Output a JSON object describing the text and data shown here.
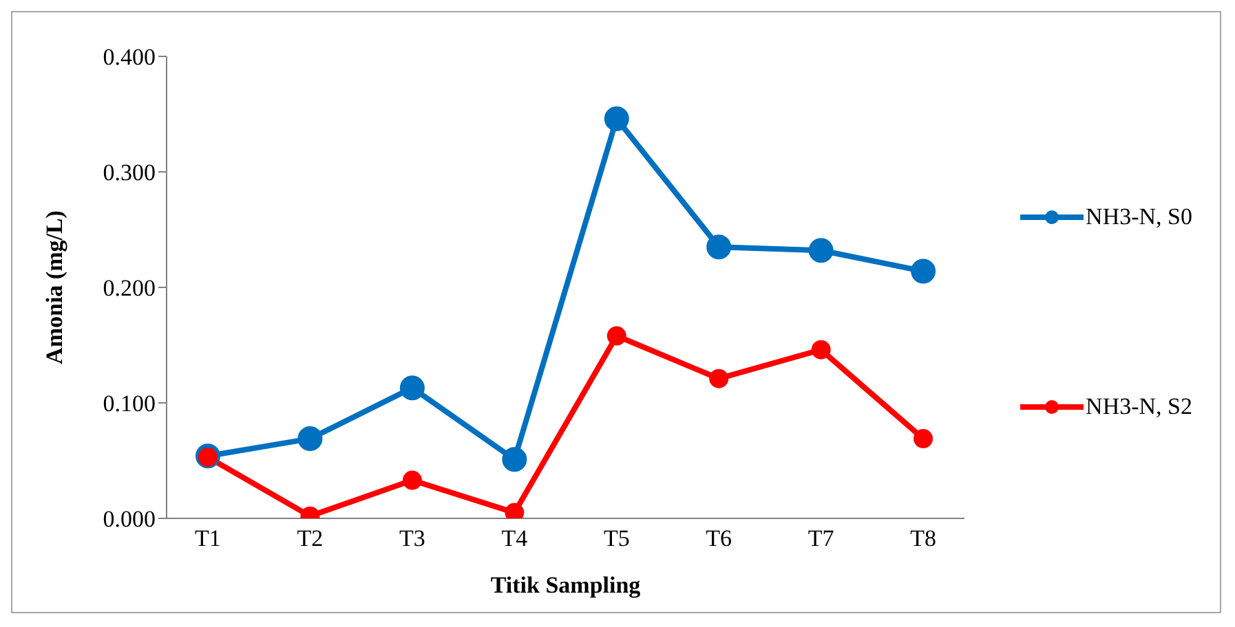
{
  "chart_data": {
    "type": "line",
    "xlabel": "Titik Sampling",
    "ylabel": "Amonia (mg/L)",
    "categories": [
      "T1",
      "T2",
      "T3",
      "T4",
      "T5",
      "T6",
      "T7",
      "T8"
    ],
    "series": [
      {
        "name": "NH3-N, S0",
        "color": "#0070c0",
        "values": [
          0.054,
          0.069,
          0.113,
          0.051,
          0.346,
          0.235,
          0.232,
          0.214
        ]
      },
      {
        "name": "NH3-N, S2",
        "color": "#ff0000",
        "values": [
          0.053,
          0.002,
          0.033,
          0.005,
          0.158,
          0.121,
          0.146,
          0.069
        ]
      }
    ],
    "ylim": [
      0,
      0.4
    ],
    "yticks": [
      {
        "value": 0,
        "label": "0.000"
      },
      {
        "value": 0.1,
        "label": "0.100"
      },
      {
        "value": 0.2,
        "label": "0.200"
      },
      {
        "value": 0.3,
        "label": "0.300"
      },
      {
        "value": 0.4,
        "label": "0.400"
      }
    ],
    "grid": false,
    "legend": "right",
    "marker": "circle",
    "line_style": "solid"
  }
}
